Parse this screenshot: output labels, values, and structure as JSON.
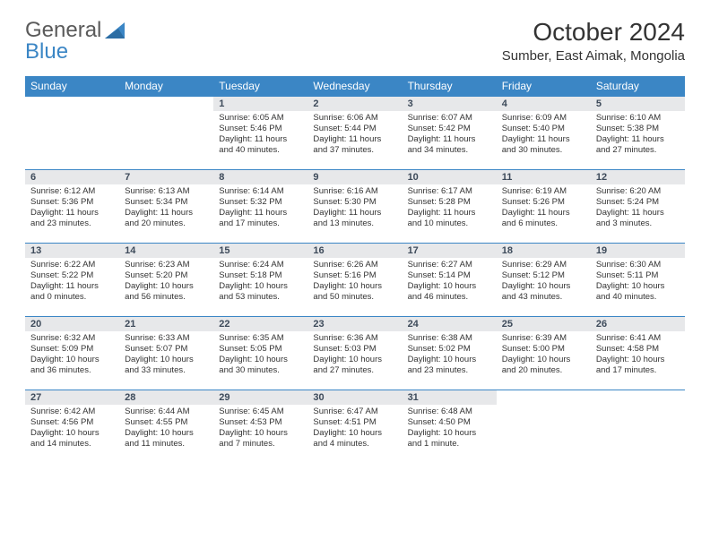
{
  "logo": {
    "word1": "General",
    "word2": "Blue"
  },
  "title": "October 2024",
  "location": "Sumber, East Aimak, Mongolia",
  "weekdays": [
    "Sunday",
    "Monday",
    "Tuesday",
    "Wednesday",
    "Thursday",
    "Friday",
    "Saturday"
  ],
  "colors": {
    "header_bg": "#3b86c5",
    "header_text": "#ffffff",
    "daynum_bg": "#e7e8ea",
    "daynum_text": "#3d4a5a",
    "row_border": "#3b86c5",
    "logo_gray": "#5a5a5a",
    "logo_blue": "#3b86c5"
  },
  "typography": {
    "title_fontsize": 28,
    "location_fontsize": 15,
    "weekday_fontsize": 12,
    "daynum_fontsize": 11,
    "body_fontsize": 9.5
  },
  "grid": [
    [
      {
        "n": "",
        "sunrise": "",
        "sunset": "",
        "daylight": ""
      },
      {
        "n": "",
        "sunrise": "",
        "sunset": "",
        "daylight": ""
      },
      {
        "n": "1",
        "sunrise": "Sunrise: 6:05 AM",
        "sunset": "Sunset: 5:46 PM",
        "daylight": "Daylight: 11 hours and 40 minutes."
      },
      {
        "n": "2",
        "sunrise": "Sunrise: 6:06 AM",
        "sunset": "Sunset: 5:44 PM",
        "daylight": "Daylight: 11 hours and 37 minutes."
      },
      {
        "n": "3",
        "sunrise": "Sunrise: 6:07 AM",
        "sunset": "Sunset: 5:42 PM",
        "daylight": "Daylight: 11 hours and 34 minutes."
      },
      {
        "n": "4",
        "sunrise": "Sunrise: 6:09 AM",
        "sunset": "Sunset: 5:40 PM",
        "daylight": "Daylight: 11 hours and 30 minutes."
      },
      {
        "n": "5",
        "sunrise": "Sunrise: 6:10 AM",
        "sunset": "Sunset: 5:38 PM",
        "daylight": "Daylight: 11 hours and 27 minutes."
      }
    ],
    [
      {
        "n": "6",
        "sunrise": "Sunrise: 6:12 AM",
        "sunset": "Sunset: 5:36 PM",
        "daylight": "Daylight: 11 hours and 23 minutes."
      },
      {
        "n": "7",
        "sunrise": "Sunrise: 6:13 AM",
        "sunset": "Sunset: 5:34 PM",
        "daylight": "Daylight: 11 hours and 20 minutes."
      },
      {
        "n": "8",
        "sunrise": "Sunrise: 6:14 AM",
        "sunset": "Sunset: 5:32 PM",
        "daylight": "Daylight: 11 hours and 17 minutes."
      },
      {
        "n": "9",
        "sunrise": "Sunrise: 6:16 AM",
        "sunset": "Sunset: 5:30 PM",
        "daylight": "Daylight: 11 hours and 13 minutes."
      },
      {
        "n": "10",
        "sunrise": "Sunrise: 6:17 AM",
        "sunset": "Sunset: 5:28 PM",
        "daylight": "Daylight: 11 hours and 10 minutes."
      },
      {
        "n": "11",
        "sunrise": "Sunrise: 6:19 AM",
        "sunset": "Sunset: 5:26 PM",
        "daylight": "Daylight: 11 hours and 6 minutes."
      },
      {
        "n": "12",
        "sunrise": "Sunrise: 6:20 AM",
        "sunset": "Sunset: 5:24 PM",
        "daylight": "Daylight: 11 hours and 3 minutes."
      }
    ],
    [
      {
        "n": "13",
        "sunrise": "Sunrise: 6:22 AM",
        "sunset": "Sunset: 5:22 PM",
        "daylight": "Daylight: 11 hours and 0 minutes."
      },
      {
        "n": "14",
        "sunrise": "Sunrise: 6:23 AM",
        "sunset": "Sunset: 5:20 PM",
        "daylight": "Daylight: 10 hours and 56 minutes."
      },
      {
        "n": "15",
        "sunrise": "Sunrise: 6:24 AM",
        "sunset": "Sunset: 5:18 PM",
        "daylight": "Daylight: 10 hours and 53 minutes."
      },
      {
        "n": "16",
        "sunrise": "Sunrise: 6:26 AM",
        "sunset": "Sunset: 5:16 PM",
        "daylight": "Daylight: 10 hours and 50 minutes."
      },
      {
        "n": "17",
        "sunrise": "Sunrise: 6:27 AM",
        "sunset": "Sunset: 5:14 PM",
        "daylight": "Daylight: 10 hours and 46 minutes."
      },
      {
        "n": "18",
        "sunrise": "Sunrise: 6:29 AM",
        "sunset": "Sunset: 5:12 PM",
        "daylight": "Daylight: 10 hours and 43 minutes."
      },
      {
        "n": "19",
        "sunrise": "Sunrise: 6:30 AM",
        "sunset": "Sunset: 5:11 PM",
        "daylight": "Daylight: 10 hours and 40 minutes."
      }
    ],
    [
      {
        "n": "20",
        "sunrise": "Sunrise: 6:32 AM",
        "sunset": "Sunset: 5:09 PM",
        "daylight": "Daylight: 10 hours and 36 minutes."
      },
      {
        "n": "21",
        "sunrise": "Sunrise: 6:33 AM",
        "sunset": "Sunset: 5:07 PM",
        "daylight": "Daylight: 10 hours and 33 minutes."
      },
      {
        "n": "22",
        "sunrise": "Sunrise: 6:35 AM",
        "sunset": "Sunset: 5:05 PM",
        "daylight": "Daylight: 10 hours and 30 minutes."
      },
      {
        "n": "23",
        "sunrise": "Sunrise: 6:36 AM",
        "sunset": "Sunset: 5:03 PM",
        "daylight": "Daylight: 10 hours and 27 minutes."
      },
      {
        "n": "24",
        "sunrise": "Sunrise: 6:38 AM",
        "sunset": "Sunset: 5:02 PM",
        "daylight": "Daylight: 10 hours and 23 minutes."
      },
      {
        "n": "25",
        "sunrise": "Sunrise: 6:39 AM",
        "sunset": "Sunset: 5:00 PM",
        "daylight": "Daylight: 10 hours and 20 minutes."
      },
      {
        "n": "26",
        "sunrise": "Sunrise: 6:41 AM",
        "sunset": "Sunset: 4:58 PM",
        "daylight": "Daylight: 10 hours and 17 minutes."
      }
    ],
    [
      {
        "n": "27",
        "sunrise": "Sunrise: 6:42 AM",
        "sunset": "Sunset: 4:56 PM",
        "daylight": "Daylight: 10 hours and 14 minutes."
      },
      {
        "n": "28",
        "sunrise": "Sunrise: 6:44 AM",
        "sunset": "Sunset: 4:55 PM",
        "daylight": "Daylight: 10 hours and 11 minutes."
      },
      {
        "n": "29",
        "sunrise": "Sunrise: 6:45 AM",
        "sunset": "Sunset: 4:53 PM",
        "daylight": "Daylight: 10 hours and 7 minutes."
      },
      {
        "n": "30",
        "sunrise": "Sunrise: 6:47 AM",
        "sunset": "Sunset: 4:51 PM",
        "daylight": "Daylight: 10 hours and 4 minutes."
      },
      {
        "n": "31",
        "sunrise": "Sunrise: 6:48 AM",
        "sunset": "Sunset: 4:50 PM",
        "daylight": "Daylight: 10 hours and 1 minute."
      },
      {
        "n": "",
        "sunrise": "",
        "sunset": "",
        "daylight": ""
      },
      {
        "n": "",
        "sunrise": "",
        "sunset": "",
        "daylight": ""
      }
    ]
  ]
}
